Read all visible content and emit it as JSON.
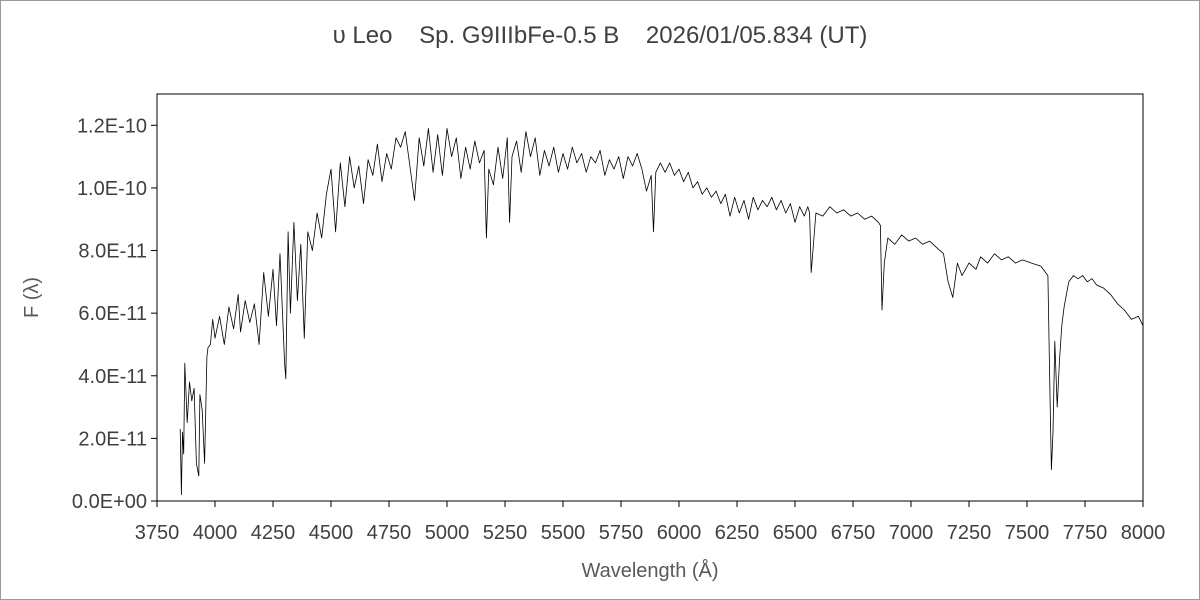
{
  "chart_data": {
    "type": "line",
    "title": "υ Leo    Sp. G9IIIbFe-0.5 B    2026/01/05.834 (UT)",
    "xlabel": "Wavelength (Å)",
    "ylabel": "F (λ)",
    "xlim": [
      3750,
      8000
    ],
    "ylim": [
      0,
      1.3e-10
    ],
    "x_ticks": [
      3750,
      4000,
      4250,
      4500,
      4750,
      5000,
      5250,
      5500,
      5750,
      6000,
      6250,
      6500,
      6750,
      7000,
      7250,
      7500,
      7750,
      8000
    ],
    "x_tick_labels": [
      "3750",
      "4000",
      "4250",
      "4500",
      "4750",
      "5000",
      "5250",
      "5500",
      "5750",
      "6000",
      "6250",
      "6500",
      "6750",
      "7000",
      "7250",
      "7500",
      "7750",
      "8000"
    ],
    "y_ticks": [
      0,
      2e-11,
      4e-11,
      6e-11,
      8e-11,
      1e-10,
      1.2e-10
    ],
    "y_tick_labels": [
      "0.0E+00",
      "2.0E-11",
      "4.0E-11",
      "6.0E-11",
      "8.0E-11",
      "1.0E-10",
      "1.2E-10"
    ],
    "grid": false,
    "legend": "none",
    "line_color": "#000000",
    "series": [
      {
        "x": [
          3850,
          3855,
          3860,
          3865,
          3870,
          3880,
          3890,
          3900,
          3910,
          3920,
          3930,
          3935,
          3945,
          3955,
          3965,
          3970,
          3980,
          3990,
          4000,
          4020,
          4040,
          4060,
          4080,
          4100,
          4110,
          4130,
          4150,
          4170,
          4190,
          4210,
          4230,
          4250,
          4265,
          4280,
          4300,
          4305,
          4315,
          4325,
          4340,
          4355,
          4370,
          4385,
          4400,
          4420,
          4440,
          4460,
          4480,
          4500,
          4520,
          4540,
          4560,
          4580,
          4600,
          4620,
          4640,
          4660,
          4680,
          4700,
          4720,
          4740,
          4760,
          4780,
          4800,
          4820,
          4840,
          4860,
          4880,
          4900,
          4920,
          4940,
          4960,
          4980,
          5000,
          5020,
          5040,
          5060,
          5080,
          5100,
          5120,
          5140,
          5160,
          5170,
          5180,
          5200,
          5220,
          5240,
          5260,
          5270,
          5280,
          5300,
          5320,
          5340,
          5360,
          5380,
          5400,
          5420,
          5440,
          5460,
          5480,
          5500,
          5520,
          5540,
          5560,
          5580,
          5600,
          5620,
          5640,
          5660,
          5680,
          5700,
          5720,
          5740,
          5760,
          5780,
          5800,
          5820,
          5840,
          5860,
          5880,
          5890,
          5900,
          5920,
          5940,
          5960,
          5980,
          6000,
          6020,
          6040,
          6060,
          6080,
          6100,
          6120,
          6140,
          6160,
          6180,
          6200,
          6220,
          6240,
          6260,
          6280,
          6300,
          6320,
          6340,
          6360,
          6380,
          6400,
          6420,
          6440,
          6460,
          6480,
          6500,
          6520,
          6540,
          6555,
          6563,
          6570,
          6590,
          6620,
          6650,
          6680,
          6710,
          6740,
          6770,
          6800,
          6830,
          6860,
          6868,
          6875,
          6885,
          6900,
          6930,
          6960,
          6990,
          7020,
          7050,
          7080,
          7110,
          7140,
          7160,
          7180,
          7200,
          7220,
          7250,
          7280,
          7300,
          7330,
          7360,
          7390,
          7420,
          7450,
          7480,
          7520,
          7560,
          7590,
          7600,
          7605,
          7612,
          7620,
          7630,
          7640,
          7650,
          7660,
          7670,
          7680,
          7700,
          7720,
          7740,
          7760,
          7780,
          7800,
          7830,
          7860,
          7890,
          7920,
          7950,
          7980,
          8000
        ],
        "y": [
          2.3e-11,
          2e-12,
          2.2e-11,
          1.5e-11,
          4.4e-11,
          2.5e-11,
          3.8e-11,
          3.2e-11,
          3.6e-11,
          1.2e-11,
          8e-12,
          3.4e-11,
          2.9e-11,
          1.2e-11,
          4.6e-11,
          4.9e-11,
          5e-11,
          5.8e-11,
          5.2e-11,
          5.9e-11,
          5e-11,
          6.2e-11,
          5.5e-11,
          6.6e-11,
          5.4e-11,
          6.4e-11,
          5.7e-11,
          6.3e-11,
          5e-11,
          7.3e-11,
          5.9e-11,
          7.4e-11,
          5.6e-11,
          7.9e-11,
          4.4e-11,
          3.9e-11,
          8.6e-11,
          6e-11,
          8.9e-11,
          6.4e-11,
          8.2e-11,
          5.2e-11,
          8.6e-11,
          8e-11,
          9.2e-11,
          8.4e-11,
          9.8e-11,
          1.06e-10,
          8.6e-11,
          1.08e-10,
          9.4e-11,
          1.1e-10,
          1e-10,
          1.07e-10,
          9.5e-11,
          1.09e-10,
          1.04e-10,
          1.14e-10,
          1.02e-10,
          1.11e-10,
          1.06e-10,
          1.16e-10,
          1.13e-10,
          1.18e-10,
          1.07e-10,
          9.6e-11,
          1.16e-10,
          1.07e-10,
          1.19e-10,
          1.05e-10,
          1.17e-10,
          1.04e-10,
          1.19e-10,
          1.1e-10,
          1.16e-10,
          1.03e-10,
          1.13e-10,
          1.06e-10,
          1.15e-10,
          1.08e-10,
          1.12e-10,
          8.4e-11,
          1.06e-10,
          1.01e-10,
          1.13e-10,
          1.03e-10,
          1.16e-10,
          8.9e-11,
          1.1e-10,
          1.15e-10,
          1.05e-10,
          1.18e-10,
          1.1e-10,
          1.16e-10,
          1.04e-10,
          1.12e-10,
          1.07e-10,
          1.13e-10,
          1.05e-10,
          1.11e-10,
          1.06e-10,
          1.13e-10,
          1.08e-10,
          1.11e-10,
          1.05e-10,
          1.1e-10,
          1.08e-10,
          1.12e-10,
          1.04e-10,
          1.09e-10,
          1.06e-10,
          1.1e-10,
          1.03e-10,
          1.1e-10,
          1.07e-10,
          1.11e-10,
          1.06e-10,
          9.9e-11,
          1.04e-10,
          8.6e-11,
          1.05e-10,
          1.08e-10,
          1.05e-10,
          1.08e-10,
          1.04e-10,
          1.06e-10,
          1.02e-10,
          1.05e-10,
          1e-10,
          1.02e-10,
          9.8e-11,
          1e-10,
          9.7e-11,
          9.9e-11,
          9.5e-11,
          9.8e-11,
          9.1e-11,
          9.7e-11,
          9.2e-11,
          9.6e-11,
          9e-11,
          9.7e-11,
          9.3e-11,
          9.6e-11,
          9.4e-11,
          9.7e-11,
          9.3e-11,
          9.6e-11,
          9.2e-11,
          9.5e-11,
          8.9e-11,
          9.4e-11,
          9.1e-11,
          9.4e-11,
          9.2e-11,
          7.3e-11,
          9.2e-11,
          9.1e-11,
          9.4e-11,
          9.2e-11,
          9.3e-11,
          9.1e-11,
          9.2e-11,
          9e-11,
          9.1e-11,
          8.9e-11,
          8.8e-11,
          6.1e-11,
          7.6e-11,
          8.4e-11,
          8.2e-11,
          8.5e-11,
          8.3e-11,
          8.4e-11,
          8.2e-11,
          8.3e-11,
          8.1e-11,
          7.9e-11,
          7e-11,
          6.5e-11,
          7.6e-11,
          7.2e-11,
          7.6e-11,
          7.4e-11,
          7.8e-11,
          7.6e-11,
          7.9e-11,
          7.7e-11,
          7.8e-11,
          7.6e-11,
          7.7e-11,
          7.6e-11,
          7.5e-11,
          7.2e-11,
          3e-11,
          1e-11,
          2.2e-11,
          5.1e-11,
          3e-11,
          4.5e-11,
          5.6e-11,
          6.2e-11,
          6.6e-11,
          7e-11,
          7.2e-11,
          7.1e-11,
          7.2e-11,
          7e-11,
          7.1e-11,
          6.9e-11,
          6.8e-11,
          6.6e-11,
          6.3e-11,
          6.1e-11,
          5.8e-11,
          5.9e-11,
          5.6e-11
        ]
      }
    ]
  }
}
